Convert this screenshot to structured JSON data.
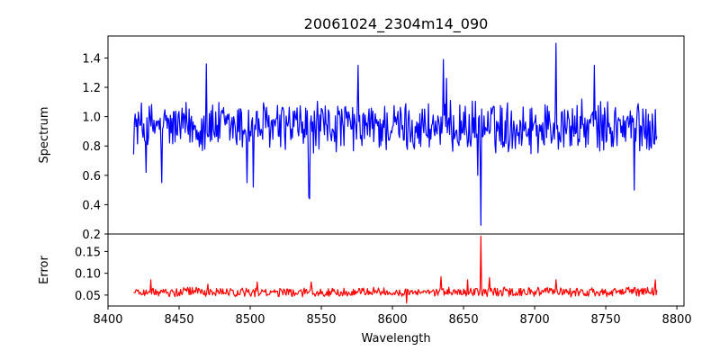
{
  "chart_data": {
    "type": "line",
    "title": "20061024_2304m14_090",
    "xlabel": "Wavelength",
    "xlim": [
      8400,
      8805
    ],
    "xticks": [
      8400,
      8450,
      8500,
      8550,
      8600,
      8650,
      8700,
      8750,
      8800
    ],
    "grid": false,
    "panels": [
      {
        "id": "spectrum",
        "ylabel": "Spectrum",
        "ylim": [
          0.2,
          1.55
        ],
        "yticks": [
          0.2,
          0.4,
          0.6,
          0.8,
          1.0,
          1.2,
          1.4
        ],
        "color": "#0000ff",
        "x_start": 8418,
        "x_end": 8786,
        "baseline": 0.93,
        "noise": 0.15,
        "features": [
          {
            "x": 8427,
            "y": 0.62
          },
          {
            "x": 8438,
            "y": 0.55
          },
          {
            "x": 8469,
            "y": 1.36
          },
          {
            "x": 8498,
            "y": 0.55
          },
          {
            "x": 8502,
            "y": 0.52
          },
          {
            "x": 8541,
            "y": 0.45
          },
          {
            "x": 8542,
            "y": 0.44
          },
          {
            "x": 8576,
            "y": 1.35
          },
          {
            "x": 8636,
            "y": 1.39
          },
          {
            "x": 8638,
            "y": 1.26
          },
          {
            "x": 8660,
            "y": 0.6
          },
          {
            "x": 8662,
            "y": 0.26
          },
          {
            "x": 8715,
            "y": 1.5
          },
          {
            "x": 8742,
            "y": 1.35
          },
          {
            "x": 8770,
            "y": 0.5
          }
        ]
      },
      {
        "id": "error",
        "ylabel": "Error",
        "ylim": [
          0.025,
          0.19
        ],
        "yticks": [
          0.05,
          0.1,
          0.15
        ],
        "ytick_labels": [
          "0.05",
          "0.10",
          "0.15"
        ],
        "color": "#ff0000",
        "x_start": 8418,
        "x_end": 8786,
        "baseline": 0.057,
        "noise": 0.009,
        "features": [
          {
            "x": 8430,
            "y": 0.085
          },
          {
            "x": 8470,
            "y": 0.075
          },
          {
            "x": 8505,
            "y": 0.08
          },
          {
            "x": 8543,
            "y": 0.08
          },
          {
            "x": 8610,
            "y": 0.032
          },
          {
            "x": 8634,
            "y": 0.092
          },
          {
            "x": 8653,
            "y": 0.085
          },
          {
            "x": 8662,
            "y": 0.185
          },
          {
            "x": 8668,
            "y": 0.09
          },
          {
            "x": 8715,
            "y": 0.085
          },
          {
            "x": 8785,
            "y": 0.085
          }
        ]
      }
    ]
  }
}
